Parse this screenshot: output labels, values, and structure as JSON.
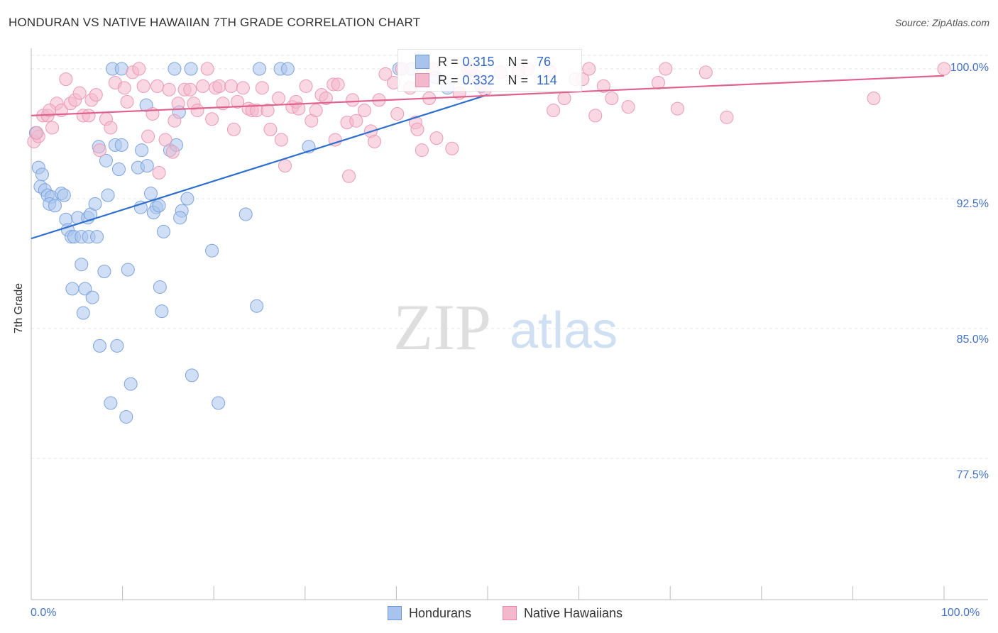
{
  "title": "HONDURAN VS NATIVE HAWAIIAN 7TH GRADE CORRELATION CHART",
  "source": "Source: ZipAtlas.com",
  "watermark": {
    "zip": "ZIP",
    "atlas": "atlas"
  },
  "legend": {
    "rows": [
      {
        "r_label": "R =",
        "r_value": "0.315",
        "n_label": "N =",
        "n_value": "76"
      },
      {
        "r_label": "R =",
        "r_value": "0.332",
        "n_label": "N =",
        "n_value": "114"
      }
    ]
  },
  "bottom_legend": [
    "Hondurans",
    "Native Hawaiians"
  ],
  "colors": {
    "blue_fill": "#a9c4ec",
    "blue_line": "#2e6fce",
    "pink_fill": "#f4b8cc",
    "pink_line": "#e0628e",
    "tick_text": "#4472c4"
  },
  "chart_data": {
    "type": "scatter",
    "title": "HONDURAN VS NATIVE HAWAIIAN 7TH GRADE CORRELATION CHART",
    "xlabel": "",
    "ylabel": "7th Grade",
    "xlim": [
      0,
      100
    ],
    "ylim": [
      70.0,
      100.8
    ],
    "x_tick_labels": [
      "0.0%",
      "100.0%"
    ],
    "y_ticks": [
      100.0,
      92.5,
      85.0,
      77.5
    ],
    "y_tick_labels": [
      "100.0%",
      "92.5%",
      "85.0%",
      "77.5%"
    ],
    "grid": "horizontal dashed",
    "legend_position": "top-center",
    "series": [
      {
        "name": "Hondurans",
        "r": 0.315,
        "n": 76,
        "trend": [
          [
            0,
            90.2
          ],
          [
            50,
            98.5
          ]
        ],
        "points": [
          [
            0.5,
            96.3
          ],
          [
            0.8,
            94.3
          ],
          [
            1.2,
            93.9
          ],
          [
            1.0,
            93.2
          ],
          [
            1.5,
            93.0
          ],
          [
            1.8,
            92.7
          ],
          [
            2.2,
            92.6
          ],
          [
            2.0,
            92.2
          ],
          [
            2.6,
            92.1
          ],
          [
            3.3,
            92.8
          ],
          [
            3.6,
            92.7
          ],
          [
            3.8,
            91.3
          ],
          [
            4.0,
            90.7
          ],
          [
            4.4,
            90.3
          ],
          [
            5.1,
            91.4
          ],
          [
            4.7,
            90.3
          ],
          [
            5.5,
            90.3
          ],
          [
            6.2,
            91.4
          ],
          [
            6.5,
            91.6
          ],
          [
            6.3,
            90.3
          ],
          [
            7.0,
            92.2
          ],
          [
            7.2,
            90.3
          ],
          [
            5.5,
            88.7
          ],
          [
            8.0,
            88.3
          ],
          [
            4.5,
            87.3
          ],
          [
            5.9,
            87.3
          ],
          [
            6.7,
            86.8
          ],
          [
            5.7,
            85.9
          ],
          [
            7.5,
            84.0
          ],
          [
            9.4,
            84.0
          ],
          [
            8.4,
            92.7
          ],
          [
            8.2,
            94.7
          ],
          [
            7.4,
            95.5
          ],
          [
            9.2,
            95.6
          ],
          [
            9.9,
            95.6
          ],
          [
            9.6,
            94.2
          ],
          [
            10.6,
            88.4
          ],
          [
            11.7,
            94.3
          ],
          [
            12.1,
            95.3
          ],
          [
            12.7,
            94.4
          ],
          [
            13.1,
            92.8
          ],
          [
            12.0,
            92.0
          ],
          [
            13.7,
            92.0
          ],
          [
            13.4,
            91.7
          ],
          [
            14.0,
            92.1
          ],
          [
            14.5,
            90.6
          ],
          [
            14.1,
            87.4
          ],
          [
            14.3,
            86.0
          ],
          [
            15.2,
            95.3
          ],
          [
            15.9,
            95.6
          ],
          [
            16.2,
            97.5
          ],
          [
            16.5,
            91.8
          ],
          [
            16.3,
            91.4
          ],
          [
            17.1,
            92.5
          ],
          [
            12.6,
            97.9
          ],
          [
            17.6,
            82.3
          ],
          [
            19.8,
            89.5
          ],
          [
            20.5,
            80.7
          ],
          [
            23.5,
            91.6
          ],
          [
            24.7,
            86.3
          ],
          [
            8.7,
            80.7
          ],
          [
            10.4,
            79.9
          ],
          [
            10.9,
            81.8
          ],
          [
            8.9,
            100.0
          ],
          [
            9.9,
            100.0
          ],
          [
            15.7,
            100.0
          ],
          [
            17.5,
            100.0
          ],
          [
            25.0,
            100.0
          ],
          [
            27.3,
            100.0
          ],
          [
            28.1,
            100.0
          ],
          [
            30.4,
            95.5
          ],
          [
            40.3,
            100.0
          ],
          [
            41.7,
            100.0
          ],
          [
            44.3,
            99.5
          ],
          [
            49.3,
            99.0
          ],
          [
            45.6,
            98.9
          ]
        ]
      },
      {
        "name": "Native Hawaiians",
        "r": 0.332,
        "n": 114,
        "trend": [
          [
            0,
            97.3
          ],
          [
            100,
            99.6
          ]
        ],
        "points": [
          [
            0.3,
            95.8
          ],
          [
            0.8,
            96.1
          ],
          [
            1.3,
            97.3
          ],
          [
            1.8,
            97.3
          ],
          [
            2.3,
            96.6
          ],
          [
            2.8,
            98.0
          ],
          [
            3.3,
            97.6
          ],
          [
            3.8,
            99.4
          ],
          [
            4.3,
            98.0
          ],
          [
            4.8,
            98.2
          ],
          [
            5.3,
            98.6
          ],
          [
            5.7,
            97.3
          ],
          [
            6.3,
            97.3
          ],
          [
            6.6,
            98.2
          ],
          [
            7.1,
            98.5
          ],
          [
            7.5,
            95.3
          ],
          [
            8.2,
            97.1
          ],
          [
            8.7,
            96.6
          ],
          [
            9.2,
            99.2
          ],
          [
            10.2,
            98.9
          ],
          [
            10.5,
            98.1
          ],
          [
            11.1,
            99.8
          ],
          [
            11.8,
            100.0
          ],
          [
            12.3,
            99.0
          ],
          [
            12.8,
            96.1
          ],
          [
            13.3,
            97.4
          ],
          [
            13.8,
            99.0
          ],
          [
            14.0,
            94.0
          ],
          [
            14.7,
            95.9
          ],
          [
            15.1,
            98.8
          ],
          [
            15.5,
            95.2
          ],
          [
            15.7,
            97.0
          ],
          [
            16.1,
            98.0
          ],
          [
            16.8,
            98.8
          ],
          [
            17.4,
            98.8
          ],
          [
            17.8,
            98.0
          ],
          [
            18.2,
            97.6
          ],
          [
            18.8,
            99.0
          ],
          [
            19.3,
            100.0
          ],
          [
            19.8,
            97.1
          ],
          [
            20.2,
            98.9
          ],
          [
            20.6,
            99.0
          ],
          [
            21.0,
            98.0
          ],
          [
            21.9,
            99.0
          ],
          [
            22.2,
            96.5
          ],
          [
            22.6,
            98.1
          ],
          [
            23.2,
            98.9
          ],
          [
            23.8,
            97.7
          ],
          [
            24.2,
            97.6
          ],
          [
            24.7,
            97.6
          ],
          [
            25.3,
            98.9
          ],
          [
            25.9,
            97.6
          ],
          [
            26.2,
            96.5
          ],
          [
            27.1,
            98.3
          ],
          [
            27.4,
            95.9
          ],
          [
            27.8,
            94.4
          ],
          [
            28.6,
            97.8
          ],
          [
            29.0,
            98.1
          ],
          [
            29.3,
            97.7
          ],
          [
            30.1,
            99.0
          ],
          [
            30.7,
            97.0
          ],
          [
            31.2,
            97.6
          ],
          [
            31.8,
            98.5
          ],
          [
            32.3,
            98.3
          ],
          [
            33.1,
            99.1
          ],
          [
            33.6,
            99.1
          ],
          [
            33.3,
            95.9
          ],
          [
            34.6,
            96.9
          ],
          [
            34.8,
            93.8
          ],
          [
            35.2,
            98.2
          ],
          [
            35.6,
            97.0
          ],
          [
            36.5,
            97.6
          ],
          [
            37.2,
            96.4
          ],
          [
            37.6,
            95.8
          ],
          [
            38.1,
            98.2
          ],
          [
            38.8,
            99.7
          ],
          [
            39.7,
            99.2
          ],
          [
            40.1,
            97.4
          ],
          [
            40.6,
            100.0
          ],
          [
            41.5,
            98.9
          ],
          [
            42.1,
            96.9
          ],
          [
            42.3,
            96.5
          ],
          [
            42.8,
            95.3
          ],
          [
            43.6,
            98.3
          ],
          [
            44.0,
            100.0
          ],
          [
            44.4,
            96.0
          ],
          [
            46.1,
            95.4
          ],
          [
            46.9,
            98.6
          ],
          [
            47.8,
            100.0
          ],
          [
            48.2,
            100.0
          ],
          [
            48.6,
            99.6
          ],
          [
            49.7,
            98.8
          ],
          [
            51.4,
            99.8
          ],
          [
            53.4,
            99.9
          ],
          [
            54.4,
            100.0
          ],
          [
            56.8,
            99.9
          ],
          [
            57.2,
            97.6
          ],
          [
            58.4,
            98.3
          ],
          [
            59.6,
            99.4
          ],
          [
            60.4,
            99.4
          ],
          [
            61.1,
            100.0
          ],
          [
            61.8,
            97.3
          ],
          [
            62.7,
            99.0
          ],
          [
            63.6,
            98.3
          ],
          [
            65.4,
            97.8
          ],
          [
            68.7,
            99.2
          ],
          [
            69.5,
            100.0
          ],
          [
            70.8,
            97.7
          ],
          [
            73.9,
            99.8
          ],
          [
            76.2,
            97.2
          ],
          [
            92.3,
            98.3
          ],
          [
            100,
            100.0
          ],
          [
            0.6,
            96.3
          ],
          [
            2.0,
            97.6
          ]
        ]
      }
    ]
  }
}
